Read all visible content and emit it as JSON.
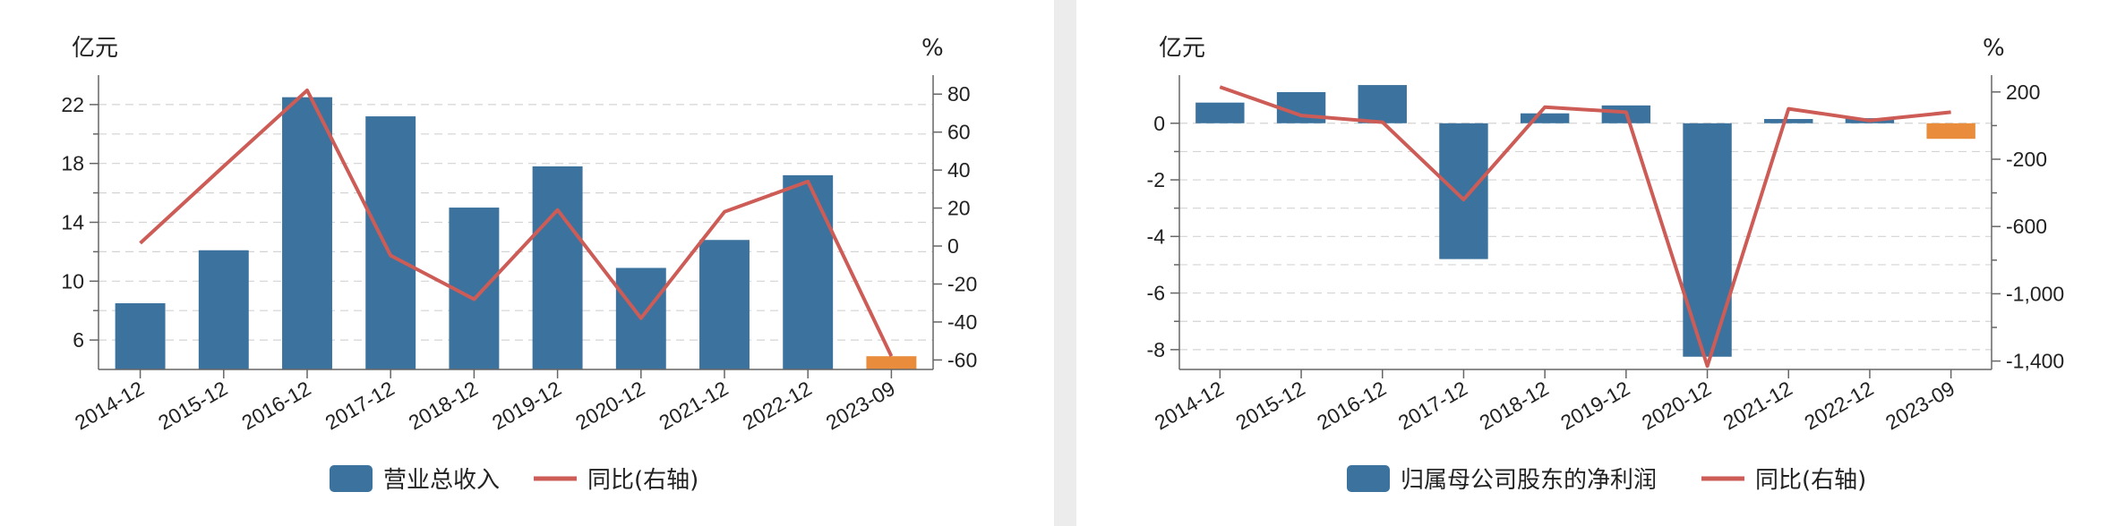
{
  "colors": {
    "bar": "#3c739e",
    "bar_forecast": "#e98d3c",
    "line": "#cd5c57"
  },
  "chart_data": [
    {
      "type": "bar",
      "categories": [
        "2014-12",
        "2015-12",
        "2016-12",
        "2017-12",
        "2018-12",
        "2019-12",
        "2020-12",
        "2021-12",
        "2022-12",
        "2023-09"
      ],
      "y_unit": "亿元",
      "y2_unit": "%",
      "ylim": [
        4,
        24
      ],
      "yticks": [
        6,
        10,
        14,
        18,
        22
      ],
      "y2lim": [
        -65,
        90
      ],
      "y2ticks": [
        80,
        60,
        40,
        20,
        0,
        -20,
        -40,
        -60
      ],
      "grid": true,
      "legend_position": "bottom-center",
      "series": [
        {
          "name": "营业总收入",
          "type": "bar",
          "values": [
            8.5,
            12.1,
            22.5,
            21.2,
            15.0,
            17.8,
            10.9,
            12.8,
            17.2,
            4.9
          ]
        },
        {
          "name": "同比(右轴)",
          "type": "line",
          "axis": "right",
          "values": [
            1.5,
            42,
            82,
            -5,
            -28,
            19,
            -38,
            18,
            34,
            -58
          ]
        }
      ]
    },
    {
      "type": "bar",
      "categories": [
        "2014-12",
        "2015-12",
        "2016-12",
        "2017-12",
        "2018-12",
        "2019-12",
        "2020-12",
        "2021-12",
        "2022-12",
        "2023-09"
      ],
      "y_unit": "亿元",
      "y2_unit": "%",
      "ylim": [
        -8.7,
        1.7
      ],
      "yticks": [
        0,
        -2,
        -4,
        -6,
        -8
      ],
      "y2lim": [
        -1450,
        300
      ],
      "y2ticks": [
        200,
        -200,
        -600,
        -1000,
        -1400
      ],
      "y2ticklabels": [
        "200",
        "-200",
        "-600",
        "-1,000",
        "-1,400"
      ],
      "grid": true,
      "legend_position": "bottom-center",
      "series": [
        {
          "name": "归属母公司股东的净利润",
          "type": "bar",
          "values": [
            0.73,
            1.1,
            1.35,
            -4.8,
            0.35,
            0.63,
            -8.25,
            0.15,
            0.18,
            -0.55
          ]
        },
        {
          "name": "同比(右轴)",
          "type": "line",
          "axis": "right",
          "values": [
            230,
            60,
            20,
            -440,
            110,
            80,
            -1430,
            100,
            30,
            80
          ]
        }
      ]
    }
  ]
}
